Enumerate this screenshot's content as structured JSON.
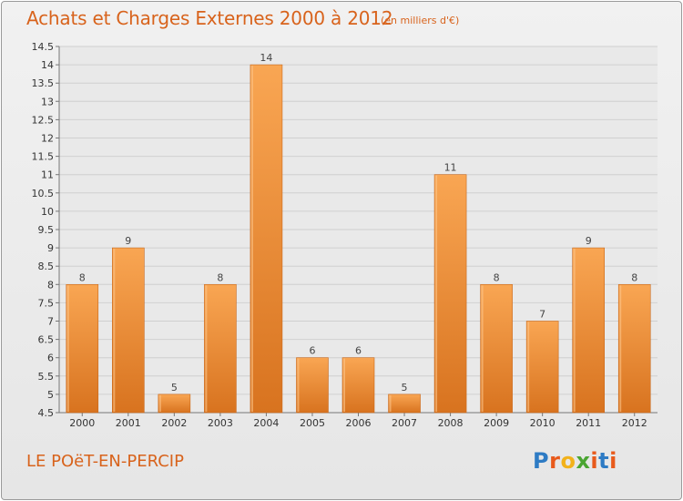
{
  "header": {
    "title": "Achats et Charges Externes 2000 à 2012",
    "subtitle": "(en milliers d'€)"
  },
  "footer": {
    "commune": "LE POëT-EN-PERCIP",
    "logo_letters": [
      "P",
      "r",
      "o",
      "x",
      "i",
      "t",
      "i"
    ]
  },
  "colors": {
    "accent": "#d8631c",
    "bar_light": "#f9a653",
    "bar_dark": "#d8731f",
    "logo": [
      "#2e7bc4",
      "#e85a1c",
      "#f2b21b",
      "#4aa532",
      "#e85a1c",
      "#2e7bc4",
      "#e85a1c"
    ]
  },
  "chart_data": {
    "type": "bar",
    "title": "Achats et Charges Externes 2000 à 2012",
    "subtitle": "(en milliers d'€)",
    "categories": [
      "2000",
      "2001",
      "2002",
      "2003",
      "2004",
      "2005",
      "2006",
      "2007",
      "2008",
      "2009",
      "2010",
      "2011",
      "2012"
    ],
    "values": [
      8,
      9,
      5,
      8,
      14,
      6,
      6,
      5,
      11,
      8,
      7,
      9,
      8
    ],
    "xlabel": "",
    "ylabel": "",
    "ylim": [
      4.5,
      14.5
    ],
    "yticks": [
      "4.5",
      "5",
      "5.5",
      "6",
      "6.5",
      "7",
      "7.5",
      "8",
      "8.5",
      "9",
      "9.5",
      "10",
      "10.5",
      "11",
      "11.5",
      "12",
      "12.5",
      "13",
      "13.5",
      "14",
      "14.5"
    ],
    "grid": true,
    "legend": "none"
  }
}
